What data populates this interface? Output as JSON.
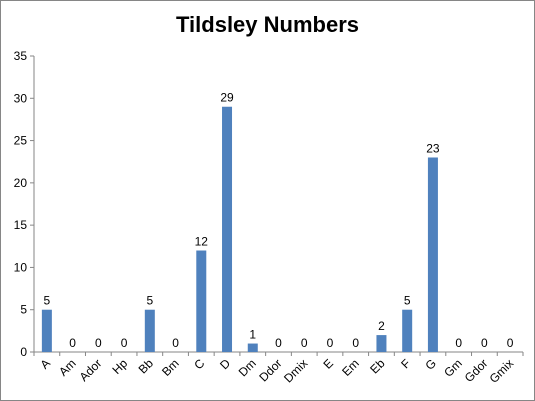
{
  "chart_data": {
    "type": "bar",
    "title": "Tildsley Numbers",
    "xlabel": "",
    "ylabel": "",
    "categories": [
      "A",
      "Am",
      "Ador",
      "Hp",
      "Bb",
      "Bm",
      "C",
      "D",
      "Dm",
      "Ddor",
      "Dmix",
      "E",
      "Em",
      "Eb",
      "F",
      "G",
      "Gm",
      "Gdor",
      "Gmix"
    ],
    "values": [
      5,
      0,
      0,
      0,
      5,
      0,
      12,
      29,
      1,
      0,
      0,
      0,
      0,
      2,
      5,
      23,
      0,
      0,
      0
    ],
    "ylim": [
      0,
      35
    ],
    "yticks": [
      0,
      5,
      10,
      15,
      20,
      25,
      30,
      35
    ],
    "grid": false,
    "legend": "none",
    "bar_color": "#4F81BD",
    "data_labels": true
  }
}
